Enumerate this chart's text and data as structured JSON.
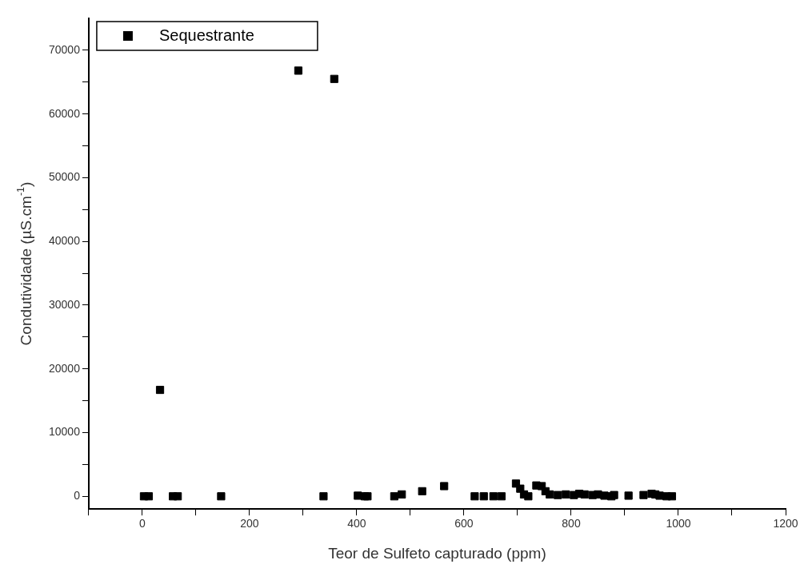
{
  "chart_data": {
    "type": "scatter",
    "xlabel": "Teor de Sulfeto capturado (ppm)",
    "ylabel": "Condutividade (µS.cm$^{-1}$)",
    "series": [
      {
        "name": "Sequestrante",
        "color": "#000000",
        "x": [
          3,
          12,
          33,
          57,
          66,
          147,
          291,
          338,
          358,
          402,
          415,
          420,
          470,
          484,
          522,
          563,
          620,
          637,
          655,
          670,
          697,
          705,
          712,
          720,
          735,
          745,
          752,
          760,
          775,
          790,
          805,
          815,
          825,
          840,
          850,
          862,
          875,
          880,
          907,
          935,
          950,
          957,
          965,
          978,
          988
        ],
        "values": [
          0,
          0,
          16700,
          0,
          0,
          0,
          66800,
          0,
          65500,
          100,
          0,
          0,
          0,
          300,
          800,
          1600,
          0,
          0,
          0,
          0,
          2000,
          1200,
          300,
          0,
          1700,
          1600,
          800,
          300,
          200,
          300,
          200,
          400,
          300,
          200,
          300,
          100,
          0,
          200,
          100,
          200,
          400,
          300,
          100,
          0,
          0
        ]
      }
    ],
    "xlim": [
      -100,
      1200
    ],
    "xticks": [
      {
        "value": -100,
        "label": null
      },
      0,
      {
        "value": 100,
        "label": null
      },
      200,
      {
        "value": 300,
        "label": null
      },
      400,
      {
        "value": 500,
        "label": null
      },
      600,
      {
        "value": 700,
        "label": null
      },
      800,
      {
        "value": 900,
        "label": null
      },
      1000,
      {
        "value": 1100,
        "label": null
      },
      1200
    ],
    "ylim": [
      -2000,
      75000
    ],
    "yticks": [
      0,
      {
        "value": 5000,
        "label": null
      },
      10000,
      {
        "value": 15000,
        "label": null
      },
      20000,
      {
        "value": 25000,
        "label": null
      },
      30000,
      {
        "value": 35000,
        "label": null
      },
      40000,
      {
        "value": 45000,
        "label": null
      },
      50000,
      {
        "value": 55000,
        "label": null
      },
      60000,
      {
        "value": 65000,
        "label": null
      },
      70000
    ],
    "grid": false,
    "legend": "top left",
    "marker": "square"
  }
}
